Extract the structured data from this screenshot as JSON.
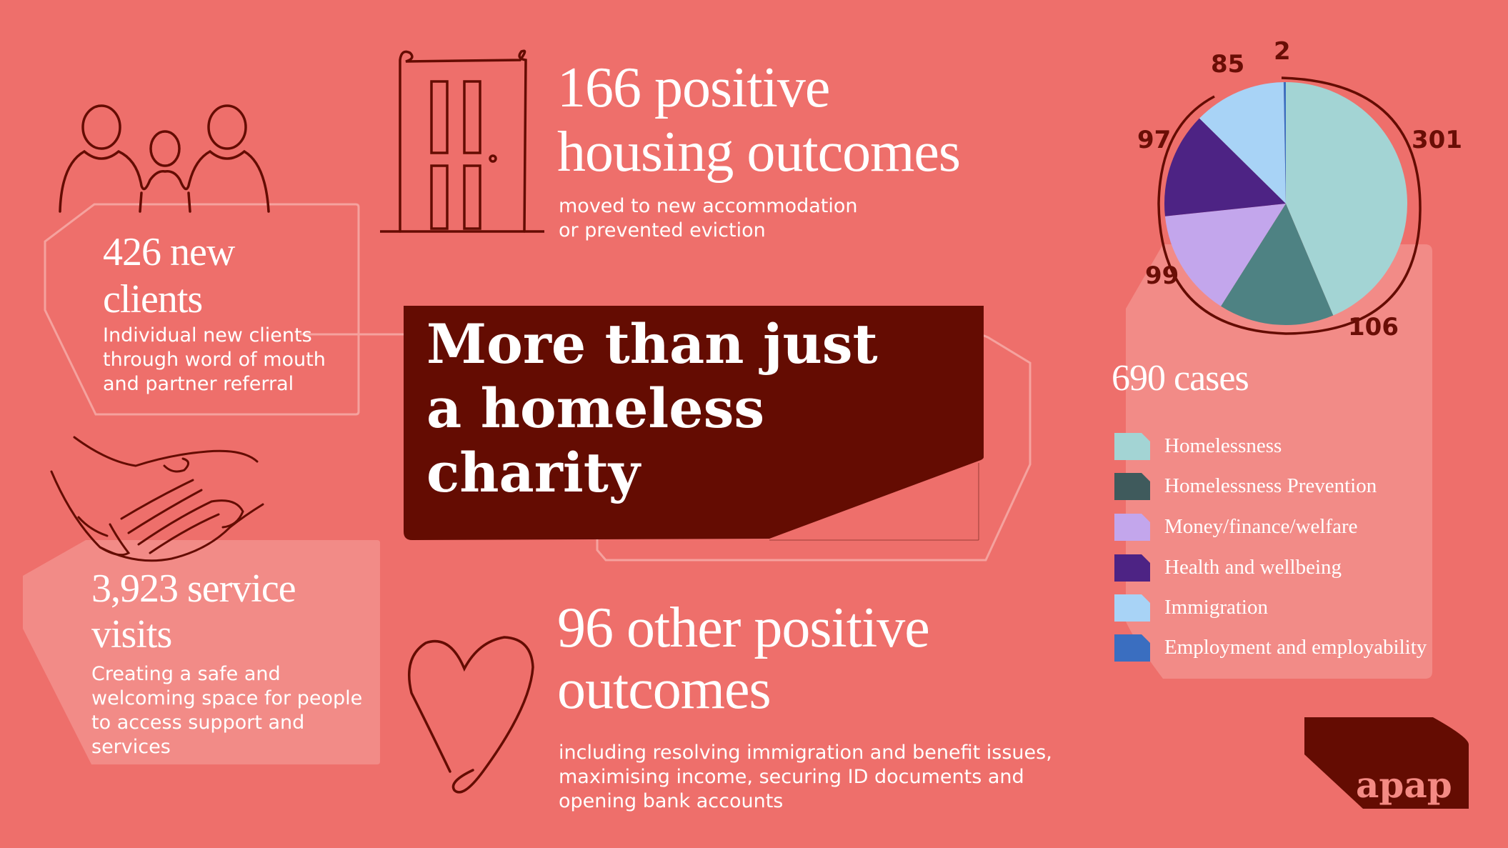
{
  "hero": {
    "title_line1": "More than just",
    "title_line2": "a homeless",
    "title_line3": "charity"
  },
  "stats": {
    "housing": {
      "title_line1": "166 positive",
      "title_line2": "housing outcomes",
      "desc_line1": "moved to new accommodation",
      "desc_line2": "or prevented eviction"
    },
    "clients": {
      "title_line1": "426 new",
      "title_line2": "clients",
      "desc_line1": "Individual new clients",
      "desc_line2": "through word of mouth",
      "desc_line3": "and partner referral"
    },
    "visits": {
      "title_line1": "3,923 service",
      "title_line2": "visits",
      "desc_line1": "Creating a safe and",
      "desc_line2": "welcoming space for people",
      "desc_line3": "to access support and",
      "desc_line4": "services"
    },
    "other": {
      "title_line1": "96 other positive",
      "title_line2": "outcomes",
      "desc_line1": "including resolving immigration and benefit issues,",
      "desc_line2": "maximising income, securing ID documents and",
      "desc_line3": "opening bank accounts"
    }
  },
  "cases": {
    "total_label": "690 cases"
  },
  "logo": {
    "text": "apap"
  },
  "icons": [
    "people-icon",
    "door-icon",
    "hands-icon",
    "heart-icon"
  ],
  "colors": {
    "background": "#ee6f6b",
    "dark": "#640c02",
    "panel": "#f28b87"
  },
  "chart_data": {
    "type": "pie",
    "categories": [
      "Homelessness",
      "Homelessness Prevention",
      "Money/finance/welfare",
      "Health and wellbeing",
      "Immigration",
      "Employment and employability"
    ],
    "values": [
      301,
      106,
      99,
      97,
      85,
      2
    ],
    "labels": [
      "301",
      "106",
      "99",
      "97",
      "85",
      "2"
    ],
    "colors": [
      "#a3d4d4",
      "#4e8283",
      "#c3a6ec",
      "#4d2384",
      "#a8d3f6",
      "#3a6ec0"
    ],
    "legend_swatch_colors": [
      "#a3d4d4",
      "#3f5a5c",
      "#c3a6ec",
      "#4d2384",
      "#a8d3f6",
      "#3a6ec0"
    ],
    "legend_placement": "right-below"
  }
}
